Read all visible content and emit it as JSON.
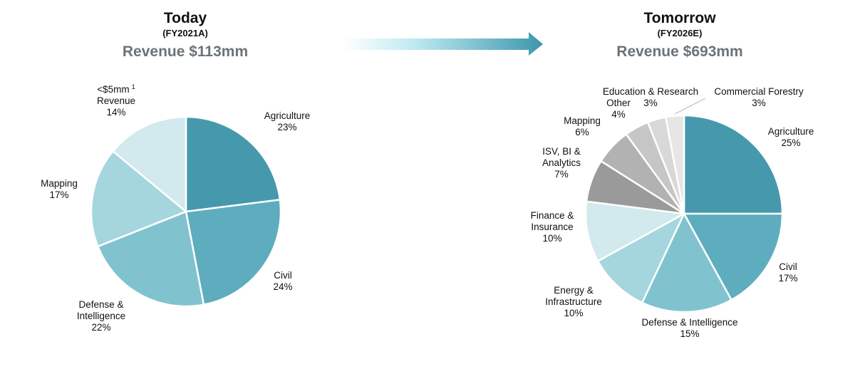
{
  "left": {
    "title": "Today",
    "subtitle": "(FY2021A)",
    "revenue": "Revenue $113mm"
  },
  "right": {
    "title": "Tomorrow",
    "subtitle": "(FY2026E)",
    "revenue": "Revenue $693mm"
  },
  "arrow_gradient": [
    "#ffffff",
    "#bfeaf2",
    "#3d97ad"
  ],
  "chart_data": [
    {
      "type": "pie",
      "title": "Today",
      "slices": [
        {
          "lines": [
            "Agriculture",
            "23%"
          ],
          "value": 23,
          "color": "#4699ad"
        },
        {
          "lines": [
            "Civil",
            "24%"
          ],
          "value": 24,
          "color": "#5eadbf"
        },
        {
          "lines": [
            "Defense &",
            "Intelligence",
            "22%"
          ],
          "value": 22,
          "color": "#80c3cf"
        },
        {
          "lines": [
            "Mapping",
            "17%"
          ],
          "value": 17,
          "color": "#a5d6de"
        },
        {
          "lines": [
            "<$5mm",
            "Revenue",
            "14%"
          ],
          "value": 14,
          "color": "#d2e9ee",
          "footnote": "1"
        }
      ]
    },
    {
      "type": "pie",
      "title": "Tomorrow",
      "slices": [
        {
          "lines": [
            "Agriculture",
            "25%"
          ],
          "value": 25,
          "color": "#4699ad"
        },
        {
          "lines": [
            "Civil",
            "17%"
          ],
          "value": 17,
          "color": "#5eadbf"
        },
        {
          "lines": [
            "Defense & Intelligence",
            "15%"
          ],
          "value": 15,
          "color": "#80c3cf"
        },
        {
          "lines": [
            "Energy &",
            "Infrastructure",
            "10%"
          ],
          "value": 10,
          "color": "#a5d6de"
        },
        {
          "lines": [
            "Finance &",
            "Insurance",
            "10%"
          ],
          "value": 10,
          "color": "#d2e9ee"
        },
        {
          "lines": [
            "ISV, BI &",
            "Analytics",
            "7%"
          ],
          "value": 7,
          "color": "#9a9a9a"
        },
        {
          "lines": [
            "Mapping",
            "6%"
          ],
          "value": 6,
          "color": "#b2b2b2"
        },
        {
          "lines": [
            "Other",
            "4%"
          ],
          "value": 4,
          "color": "#c6c6c6"
        },
        {
          "lines": [
            "Education & Research",
            "3%"
          ],
          "value": 3,
          "color": "#d8d8d8"
        },
        {
          "lines": [
            "Commercial Forestry",
            "3%"
          ],
          "value": 3,
          "color": "#e6e6e6"
        }
      ]
    }
  ]
}
